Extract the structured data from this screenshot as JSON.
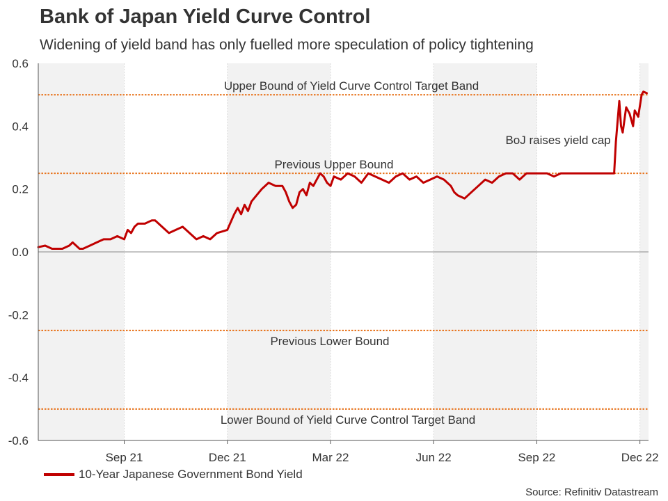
{
  "chart_data": {
    "type": "line",
    "title": "Bank of Japan Yield Curve Control",
    "subtitle": "Widening of yield band has only fuelled more speculation of policy tightening",
    "xlabel": "",
    "ylabel": "",
    "ylim": [
      -0.6,
      0.6
    ],
    "y_ticks": [
      "0.6",
      "0.4",
      "0.2",
      "0.0",
      "-0.2",
      "-0.4",
      "-0.6"
    ],
    "x_tick_labels": [
      "Sep 21",
      "Dec 21",
      "Mar 22",
      "Jun 22",
      "Sep 22",
      "Dec 22"
    ],
    "x_range_months": [
      0,
      17.75
    ],
    "x_tick_month_positions": [
      2.5,
      5.5,
      8.5,
      11.5,
      14.5,
      17.5
    ],
    "series": [
      {
        "name": "10-Year Japanese Government Bond Yield",
        "color": "#c00000",
        "x": [
          0,
          0.2,
          0.4,
          0.7,
          0.9,
          1.0,
          1.2,
          1.3,
          1.5,
          1.7,
          1.9,
          2.1,
          2.3,
          2.5,
          2.6,
          2.7,
          2.8,
          2.9,
          3.1,
          3.3,
          3.4,
          3.6,
          3.8,
          4.0,
          4.2,
          4.4,
          4.6,
          4.8,
          5.0,
          5.2,
          5.5,
          5.7,
          5.8,
          5.9,
          6.0,
          6.1,
          6.2,
          6.35,
          6.5,
          6.7,
          6.9,
          7.1,
          7.2,
          7.3,
          7.4,
          7.5,
          7.6,
          7.7,
          7.8,
          7.9,
          8.0,
          8.1,
          8.2,
          8.3,
          8.4,
          8.5,
          8.6,
          8.8,
          9.0,
          9.2,
          9.4,
          9.6,
          9.8,
          10.0,
          10.2,
          10.4,
          10.6,
          10.8,
          11.0,
          11.2,
          11.4,
          11.6,
          11.8,
          12.0,
          12.1,
          12.2,
          12.4,
          12.6,
          12.8,
          13.0,
          13.2,
          13.4,
          13.6,
          13.8,
          14.0,
          14.2,
          14.4,
          14.6,
          14.8,
          15.0,
          15.2,
          15.4,
          15.6,
          15.8,
          16.0,
          16.2,
          16.4,
          16.6,
          16.75,
          16.8,
          16.9,
          16.95,
          17.0,
          17.1,
          17.2,
          17.3,
          17.35,
          17.45,
          17.55,
          17.6,
          17.7
        ],
        "values": [
          0.015,
          0.02,
          0.01,
          0.01,
          0.02,
          0.03,
          0.01,
          0.01,
          0.02,
          0.03,
          0.04,
          0.04,
          0.05,
          0.04,
          0.07,
          0.06,
          0.08,
          0.09,
          0.09,
          0.1,
          0.1,
          0.08,
          0.06,
          0.07,
          0.08,
          0.06,
          0.04,
          0.05,
          0.04,
          0.06,
          0.07,
          0.12,
          0.14,
          0.12,
          0.15,
          0.13,
          0.16,
          0.18,
          0.2,
          0.22,
          0.21,
          0.21,
          0.19,
          0.16,
          0.14,
          0.15,
          0.19,
          0.2,
          0.18,
          0.22,
          0.21,
          0.23,
          0.25,
          0.24,
          0.22,
          0.21,
          0.24,
          0.23,
          0.25,
          0.24,
          0.22,
          0.25,
          0.24,
          0.23,
          0.22,
          0.24,
          0.25,
          0.23,
          0.24,
          0.22,
          0.23,
          0.24,
          0.23,
          0.21,
          0.19,
          0.18,
          0.17,
          0.19,
          0.21,
          0.23,
          0.22,
          0.24,
          0.25,
          0.25,
          0.23,
          0.25,
          0.25,
          0.25,
          0.25,
          0.24,
          0.25,
          0.25,
          0.25,
          0.25,
          0.25,
          0.25,
          0.25,
          0.25,
          0.25,
          0.35,
          0.48,
          0.4,
          0.38,
          0.46,
          0.44,
          0.4,
          0.45,
          0.43,
          0.5,
          0.51,
          0.505
        ]
      }
    ],
    "reference_lines": [
      {
        "value": 0.5,
        "label": "Upper Bound of Yield Curve Control Target Band"
      },
      {
        "value": 0.25,
        "label": "Previous Upper Bound"
      },
      {
        "value": -0.25,
        "label": "Previous Lower Bound"
      },
      {
        "value": -0.5,
        "label": "Lower Bound of Yield Curve Control Target Band"
      }
    ],
    "annotations": [
      {
        "text": "BoJ raises yield cap",
        "x": 16.65,
        "y": 0.357
      }
    ],
    "shaded_quarters": [
      [
        0,
        2.5
      ],
      [
        5.5,
        8.5
      ],
      [
        11.5,
        14.5
      ],
      [
        17.5,
        17.75
      ]
    ],
    "colors": {
      "line": "#c00000",
      "bands": "#e87722",
      "shade": "#f2f2f2",
      "grid": "#dcdcdc",
      "zero": "#888888"
    }
  },
  "legend": {
    "label": "10-Year Japanese Government Bond Yield"
  },
  "source": "Source: Refinitiv Datastream"
}
